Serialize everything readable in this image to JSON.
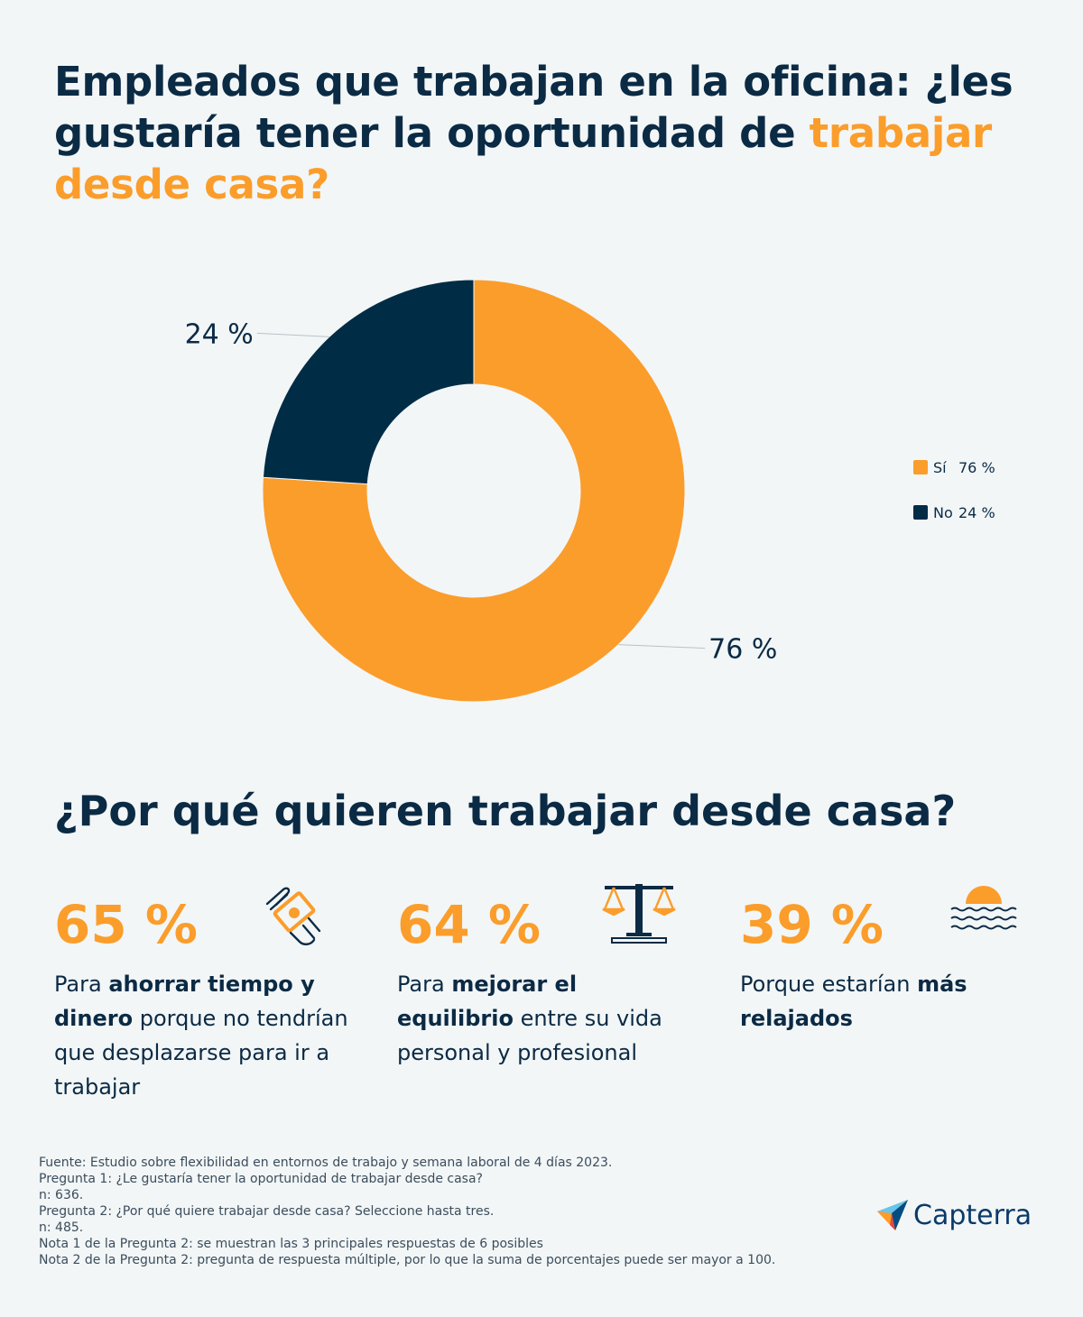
{
  "title": {
    "part1": "Empleados que trabajan en la oficina: ¿les gustaría tener la oportunidad de ",
    "highlight": "trabajar desde casa?"
  },
  "chart_data": {
    "type": "pie",
    "donut": true,
    "categories": [
      "Sí",
      "No"
    ],
    "values": [
      76,
      24
    ],
    "labels": [
      "76 %",
      "24 %"
    ],
    "colors": [
      "#fb9d2b",
      "#012c46"
    ],
    "legend": [
      {
        "label": "Sí",
        "value": "76 %"
      },
      {
        "label": "No",
        "value": "24 %"
      }
    ],
    "legend_position": "right"
  },
  "subtitle": "¿Por qué quieren trabajar desde casa?",
  "reasons": [
    {
      "pct": "65 %",
      "pre": "Para ",
      "bold": "ahorrar tiempo y dinero",
      "post": " porque no tendrían que desplazarse para ir a trabajar",
      "icon": "money-hand-icon"
    },
    {
      "pct": "64 %",
      "pre": "Para ",
      "bold": "mejorar el equilibrio",
      "post": " entre su vida personal y profesional",
      "icon": "scale-icon"
    },
    {
      "pct": "39 %",
      "pre": "Porque estarían ",
      "bold": "más relajados",
      "post": "",
      "icon": "sunset-sea-icon"
    }
  ],
  "footer": [
    "Fuente: Estudio sobre flexibilidad en entornos de trabajo y semana laboral de 4 días 2023.",
    "Pregunta 1: ¿Le gustaría tener la oportunidad de trabajar desde casa?",
    "n: 636.",
    "Pregunta 2: ¿Por qué quiere trabajar desde casa? Seleccione hasta tres.",
    "n: 485.",
    "Nota 1 de la Pregunta 2: se muestran las 3 principales respuestas de 6 posibles",
    "Nota 2 de la Pregunta 2: pregunta de respuesta múltiple, por lo que la suma de porcentajes puede ser mayor a 100."
  ],
  "brand": "Capterra",
  "colors": {
    "accent": "#fb9d2b",
    "navy": "#0b2a44"
  }
}
